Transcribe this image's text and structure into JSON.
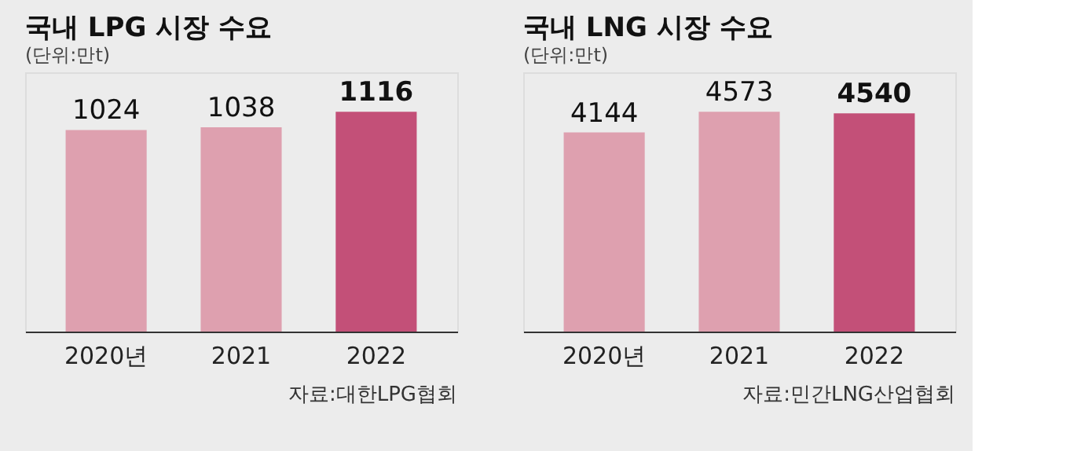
{
  "chart_data": [
    {
      "type": "bar",
      "title": "국내 LPG 시장 수요",
      "subtitle": "(단위:만t)",
      "categories": [
        "2020년",
        "2021",
        "2022"
      ],
      "values": [
        1024,
        1038,
        1116
      ],
      "colors": [
        "#dea0af",
        "#dea0af",
        "#c35078"
      ],
      "data_labels": true,
      "annotations": [
        "자료:대한LPG협회"
      ]
    },
    {
      "type": "bar",
      "title": "국내 LNG 시장 수요",
      "subtitle": "(단위:만t)",
      "categories": [
        "2020년",
        "2021",
        "2022"
      ],
      "values": [
        4144,
        4573,
        4540
      ],
      "colors": [
        "#dea0af",
        "#dea0af",
        "#c35078"
      ],
      "data_labels": true,
      "annotations": [
        "자료:민간LNG산업협회"
      ]
    }
  ]
}
